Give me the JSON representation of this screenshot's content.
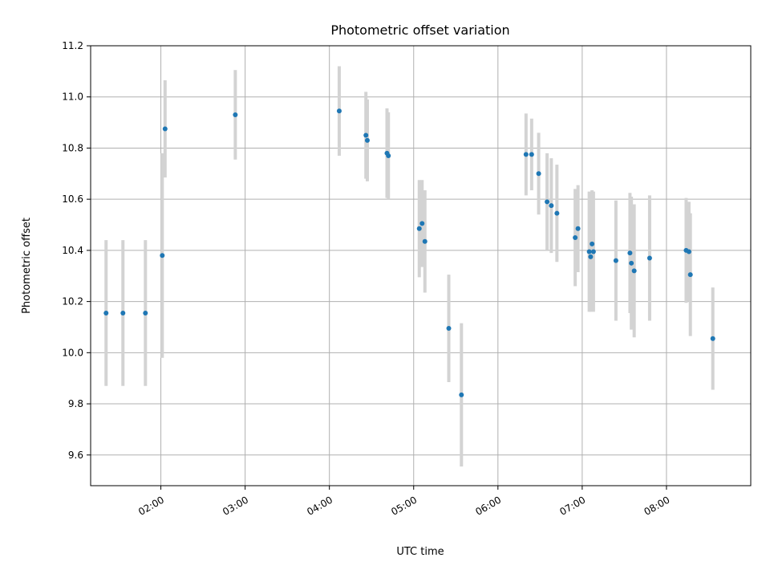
{
  "chart_data": {
    "type": "scatter",
    "title": "Photometric offset variation",
    "xlabel": "UTC time",
    "ylabel": "Photometric offset",
    "xlim": [
      "01:10",
      "09:00"
    ],
    "ylim": [
      9.48,
      11.2
    ],
    "x_ticks": [
      "02:00",
      "03:00",
      "04:00",
      "05:00",
      "06:00",
      "07:00",
      "08:00"
    ],
    "y_ticks": [
      "9.6",
      "9.8",
      "10.0",
      "10.2",
      "10.4",
      "10.6",
      "10.8",
      "11.0",
      "11.2"
    ],
    "grid": true,
    "colors": {
      "points": "#1f77b4",
      "errorbars": "#d3d3d3",
      "grid": "#b0b0b0"
    },
    "series": [
      {
        "x": [
          "01:21",
          "01:33",
          "01:49",
          "02:01",
          "02:03",
          "02:53",
          "04:07",
          "04:26",
          "04:27",
          "04:41",
          "04:42",
          "05:04",
          "05:06",
          "05:08",
          "05:25",
          "05:34",
          "06:20",
          "06:24",
          "06:29",
          "06:35",
          "06:38",
          "06:42",
          "06:55",
          "06:57",
          "07:05",
          "07:06",
          "07:07",
          "07:08",
          "07:24",
          "07:34",
          "07:35",
          "07:37",
          "07:48",
          "08:14",
          "08:16",
          "08:17",
          "08:33"
        ],
        "y": [
          10.155,
          10.155,
          10.155,
          10.38,
          10.875,
          10.93,
          10.945,
          10.85,
          10.83,
          10.78,
          10.77,
          10.485,
          10.505,
          10.435,
          10.095,
          9.835,
          10.775,
          10.775,
          10.7,
          10.59,
          10.575,
          10.545,
          10.45,
          10.485,
          10.395,
          10.375,
          10.425,
          10.395,
          10.36,
          10.39,
          10.35,
          10.32,
          10.37,
          10.4,
          10.395,
          10.305,
          10.055
        ],
        "y_err": [
          0.285,
          0.285,
          0.285,
          0.4,
          0.19,
          0.175,
          0.175,
          0.17,
          0.16,
          0.175,
          0.17,
          0.19,
          0.17,
          0.2,
          0.21,
          0.28,
          0.16,
          0.14,
          0.16,
          0.19,
          0.185,
          0.19,
          0.19,
          0.17,
          0.235,
          0.215,
          0.21,
          0.235,
          0.235,
          0.235,
          0.26,
          0.26,
          0.245,
          0.205,
          0.195,
          0.24,
          0.2
        ]
      }
    ]
  }
}
